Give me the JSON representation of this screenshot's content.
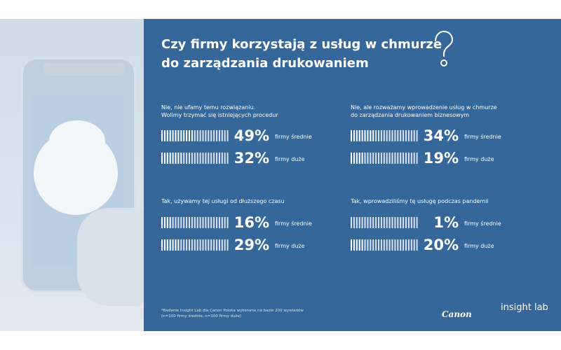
{
  "title_lines": [
    "Czy firmy korzystają z usług w chmurze",
    "do zarządzania drukowaniem"
  ],
  "colors": {
    "panel": "#36679a",
    "text": "#ffffff"
  },
  "icons": [
    "question-mark-icon",
    "phone-cloud-photo"
  ],
  "chart_data": {
    "type": "bar",
    "unit": "%",
    "panels": [
      {
        "question_lines": [
          "Nie, nie ufamy temu rozwiązaniu.",
          "Wolimy trzymać się istniejących procedur"
        ],
        "series": [
          {
            "group": "firmy średnie",
            "value": 49
          },
          {
            "group": "firmy duże",
            "value": 32
          }
        ]
      },
      {
        "question_lines": [
          "Nie, ale rozważamy wprowadzenie usług w chmurze",
          "do zarządzania drukowaniem biznesowym"
        ],
        "series": [
          {
            "group": "firmy średnie",
            "value": 34
          },
          {
            "group": "firmy duże",
            "value": 19
          }
        ]
      },
      {
        "question_lines": [
          "Tak, używamy tej usługi od dłuższego czasu"
        ],
        "series": [
          {
            "group": "firmy średnie",
            "value": 16
          },
          {
            "group": "firmy duże",
            "value": 29
          }
        ]
      },
      {
        "question_lines": [
          "Tak, wprowadziliśmy tę usługę podczas pandemii"
        ],
        "series": [
          {
            "group": "firmy średnie",
            "value": 1
          },
          {
            "group": "firmy duże",
            "value": 20
          }
        ]
      }
    ]
  },
  "footnote_lines": [
    "*Badanie Insight Lab dla Canon Polska wykonane na bazie 200 wywiadów",
    "(n=100 firmy średnie, n=100 firmy duże)"
  ],
  "logos": {
    "canon": "Canon",
    "insight_lab": "insight lab"
  }
}
